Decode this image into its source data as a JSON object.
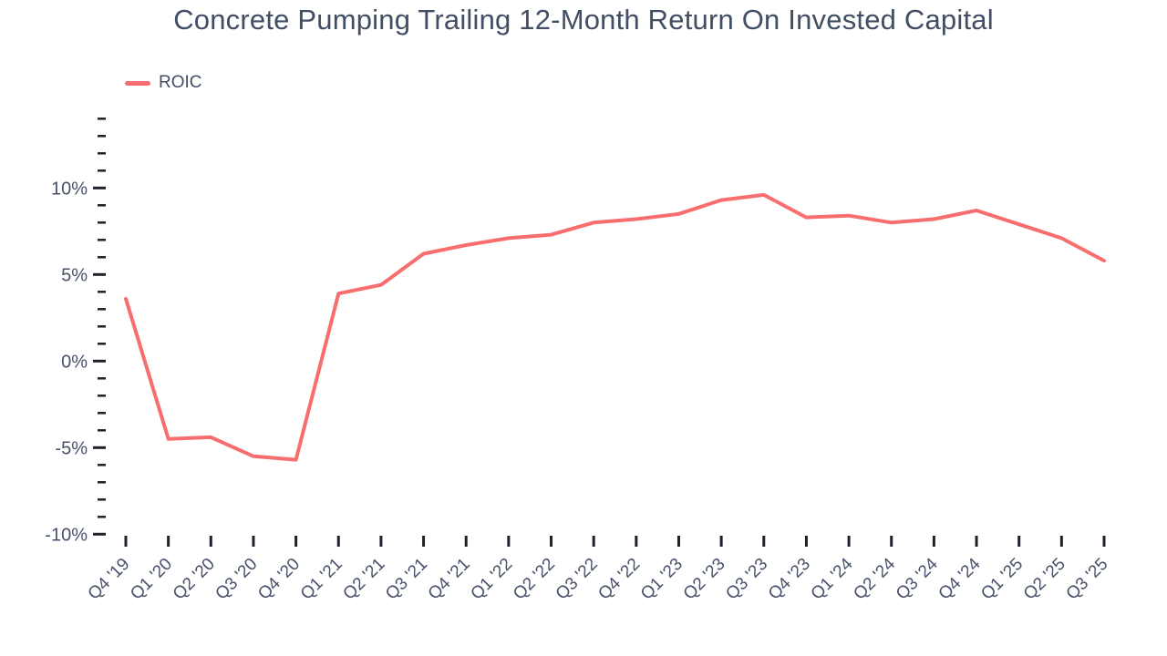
{
  "title": "Concrete Pumping Trailing 12-Month Return On Invested Capital",
  "legend": {
    "label": "ROIC"
  },
  "colors": {
    "line": "#f86e6e",
    "text": "#414e63",
    "axis_tick": "#1c212b",
    "background": "#ffffff"
  },
  "chart_data": {
    "type": "line",
    "title": "Concrete Pumping Trailing 12-Month Return On Invested Capital",
    "categories": [
      "Q4 '19",
      "Q1 '20",
      "Q2 '20",
      "Q3 '20",
      "Q4 '20",
      "Q1 '21",
      "Q2 '21",
      "Q3 '21",
      "Q4 '21",
      "Q1 '22",
      "Q2 '22",
      "Q3 '22",
      "Q4 '22",
      "Q1 '23",
      "Q2 '23",
      "Q3 '23",
      "Q4 '23",
      "Q1 '24",
      "Q2 '24",
      "Q3 '24",
      "Q4 '24",
      "Q1 '25",
      "Q2 '25",
      "Q3 '25"
    ],
    "series": [
      {
        "name": "ROIC",
        "color": "#f86e6e",
        "values": [
          3.6,
          -4.5,
          -4.4,
          -5.5,
          -5.7,
          3.9,
          4.4,
          6.2,
          6.7,
          7.1,
          7.3,
          8.0,
          8.2,
          8.5,
          9.3,
          9.6,
          8.3,
          8.4,
          8.0,
          8.2,
          8.7,
          7.9,
          7.1,
          5.8
        ]
      }
    ],
    "unit": "%",
    "xlabel": "",
    "ylabel": "",
    "ylim": [
      -10.5,
      14
    ],
    "yticks_major": [
      10,
      5,
      0,
      -5,
      -10
    ],
    "ytick_labels": [
      "10%",
      "5%",
      "0%",
      "-5%",
      "-10%"
    ],
    "ytick_minor_step": 1,
    "ytick_minor_range": [
      -10,
      14
    ],
    "grid": false,
    "legend_position": "top-left"
  }
}
